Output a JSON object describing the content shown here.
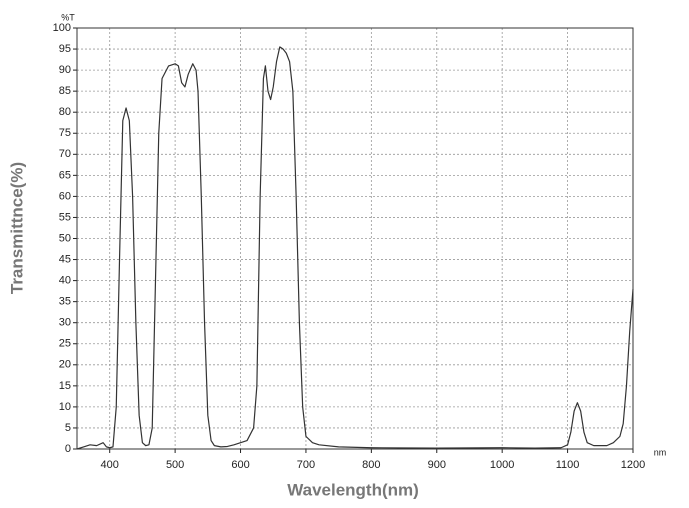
{
  "chart_data": {
    "type": "line",
    "x_label": "Wavelength(nm)",
    "y_label": "Transmittnce(%)",
    "x_unit": "nm",
    "y_unit": "%T",
    "x": [
      350,
      360,
      370,
      380,
      390,
      395,
      400,
      405,
      410,
      415,
      420,
      425,
      430,
      435,
      440,
      445,
      450,
      455,
      460,
      465,
      470,
      475,
      480,
      490,
      500,
      505,
      510,
      515,
      520,
      527,
      532,
      535,
      540,
      545,
      550,
      555,
      560,
      570,
      580,
      590,
      600,
      610,
      620,
      625,
      630,
      635,
      638,
      642,
      646,
      650,
      655,
      660,
      665,
      670,
      675,
      680,
      685,
      690,
      695,
      700,
      710,
      720,
      750,
      800,
      900,
      1000,
      1050,
      1090,
      1100,
      1105,
      1110,
      1115,
      1120,
      1125,
      1130,
      1140,
      1160,
      1170,
      1180,
      1185,
      1190,
      1195,
      1200
    ],
    "values": [
      0,
      0.5,
      1,
      0.8,
      1.5,
      0.5,
      0.3,
      0.5,
      10,
      45,
      78,
      81,
      78,
      60,
      30,
      8,
      1.5,
      0.8,
      1,
      5,
      40,
      75,
      88,
      91,
      91.5,
      91,
      87,
      86,
      89,
      91.5,
      90,
      85,
      60,
      30,
      8,
      2,
      0.8,
      0.5,
      0.6,
      1,
      1.5,
      2,
      5,
      15,
      60,
      88,
      91,
      85,
      83,
      86,
      92,
      95.5,
      95,
      94,
      92,
      85,
      60,
      30,
      10,
      3,
      1.5,
      1,
      0.5,
      0.3,
      0.2,
      0.3,
      0.2,
      0.3,
      1,
      4,
      9,
      11,
      9,
      4,
      1.5,
      0.8,
      0.8,
      1.5,
      3,
      6,
      15,
      28,
      38
    ],
    "color": "#333333",
    "xlim": [
      350,
      1200
    ],
    "ylim": [
      0,
      100
    ],
    "xticks": [
      400,
      500,
      600,
      700,
      800,
      900,
      1000,
      1100,
      1200
    ],
    "yticks": [
      0,
      5,
      10,
      15,
      20,
      25,
      30,
      35,
      40,
      45,
      50,
      55,
      60,
      65,
      70,
      75,
      80,
      85,
      90,
      95,
      100
    ],
    "grid": true
  }
}
